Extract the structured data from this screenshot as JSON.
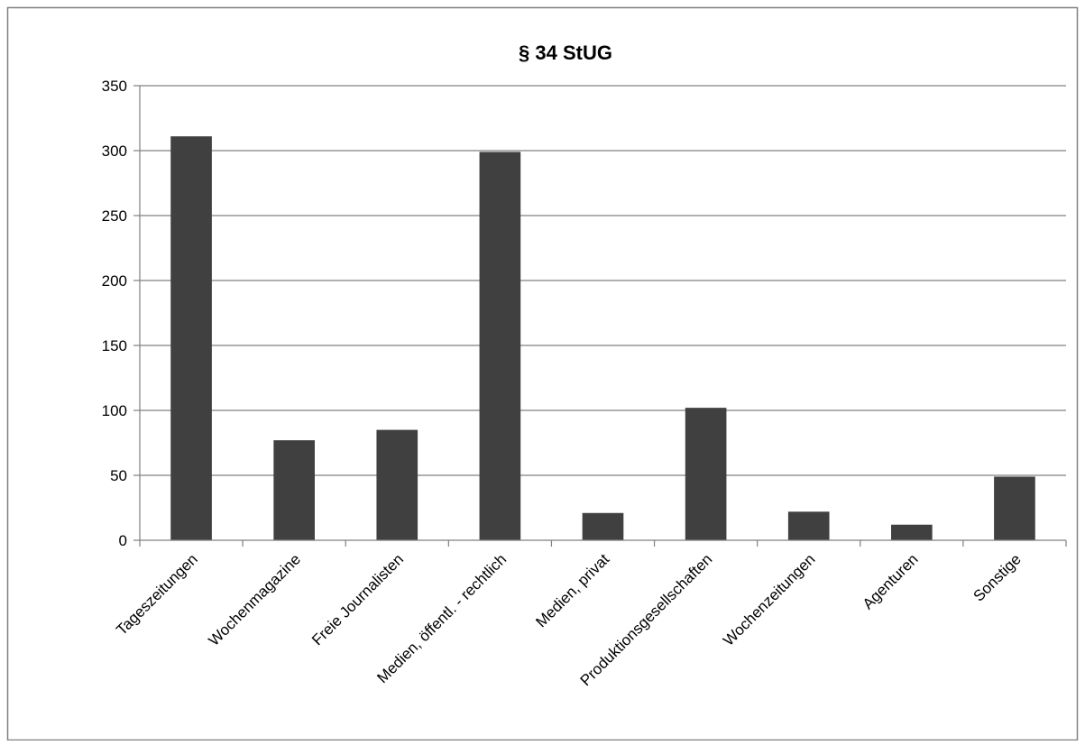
{
  "chart_data": {
    "type": "bar",
    "title": "§ 34 StUG",
    "xlabel": "",
    "ylabel": "",
    "categories": [
      "Tageszeitungen",
      "Wochenmagazine",
      "Freie Journalisten",
      "Medien, öffentl. - rechtlich",
      "Medien,  privat",
      "Produktionsgesellschaften",
      "Wochenzeitungen",
      "Agenturen",
      "Sonstige"
    ],
    "values": [
      311,
      77,
      85,
      299,
      21,
      102,
      22,
      12,
      49
    ],
    "ylim": [
      0,
      350
    ],
    "yticks": [
      0,
      50,
      100,
      150,
      200,
      250,
      300,
      350
    ],
    "grid": true,
    "legend": "none",
    "colors": {
      "bar": "#404040",
      "grid": "#808080",
      "axis": "#808080",
      "border": "#808080"
    }
  }
}
